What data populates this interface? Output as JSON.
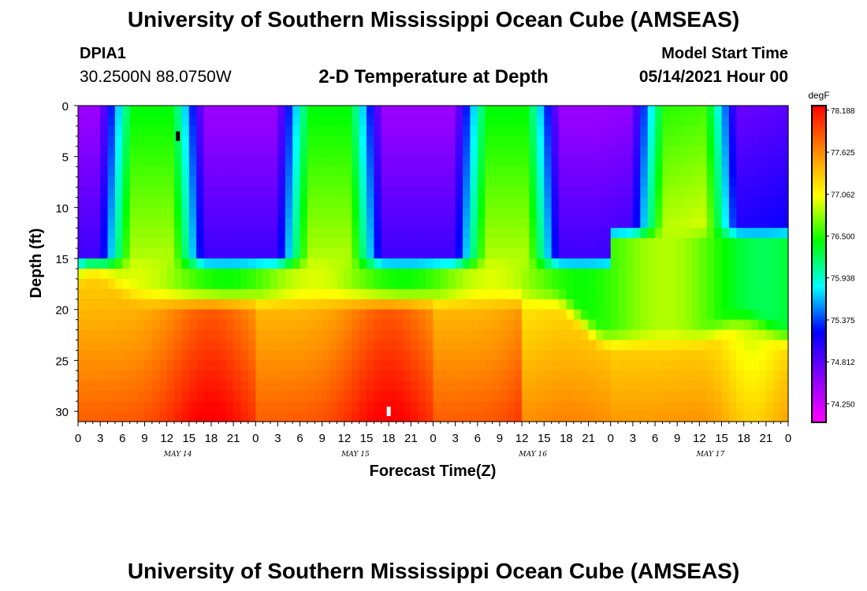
{
  "header": {
    "title": "University of Southern Mississippi Ocean Cube (AMSEAS)",
    "station_id": "DPIA1",
    "station_coords": "30.2500N  88.0750W",
    "chart_title": "2-D Temperature at Depth",
    "model_start_label": "Model Start Time",
    "model_start_value": "05/14/2021 Hour 00"
  },
  "footer": {
    "title": "University of Southern Mississippi Ocean Cube (AMSEAS)"
  },
  "chart_data": {
    "type": "heatmap",
    "title": "2-D Temperature at Depth",
    "xlabel": "Forecast Time(Z)",
    "ylabel": "Depth (ft)",
    "x_range_hours": [
      0,
      96
    ],
    "ylim": [
      0,
      31
    ],
    "y_ticks": [
      0,
      5,
      10,
      15,
      20,
      25,
      30
    ],
    "x_tick_labels": [
      "0",
      "3",
      "6",
      "9",
      "12",
      "15",
      "18",
      "21",
      "0",
      "3",
      "6",
      "9",
      "12",
      "15",
      "18",
      "21",
      "0",
      "3",
      "6",
      "9",
      "12",
      "15",
      "18",
      "21",
      "0",
      "3",
      "6",
      "9",
      "12",
      "15",
      "18",
      "21",
      "0"
    ],
    "day_labels": [
      "MAY 14",
      "MAY 15",
      "MAY 16",
      "MAY 17"
    ],
    "colorbar": {
      "unit": "degF",
      "tick_labels": [
        "78.188",
        "77.625",
        "77.062",
        "76.500",
        "75.938",
        "75.375",
        "74.812",
        "74.250"
      ],
      "vmin": 74.0,
      "vmax": 78.25,
      "colors": [
        "#ff00ff",
        "#8800ff",
        "#0000ff",
        "#00ffff",
        "#00ff00",
        "#ffff00",
        "#ff8800",
        "#ff0000"
      ]
    },
    "markers": [
      {
        "x_hour": 13.5,
        "depth": 3.0,
        "color": "#000000"
      },
      {
        "x_hour": 42.0,
        "depth": 30.0,
        "color": "#ffffff"
      }
    ],
    "grid": false
  }
}
